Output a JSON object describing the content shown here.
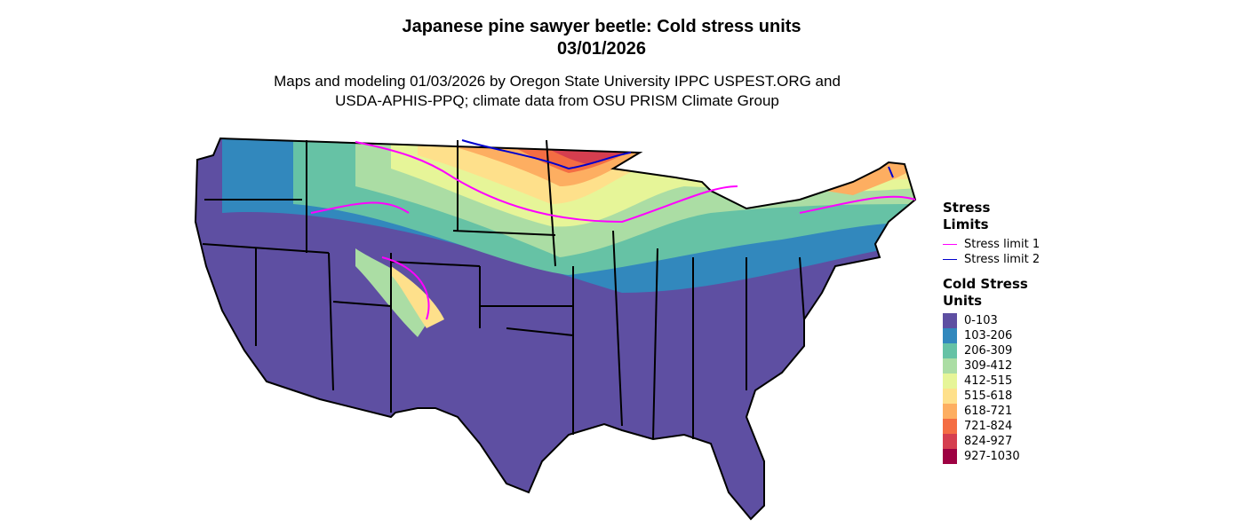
{
  "header": {
    "title": "Japanese pine sawyer beetle: Cold stress units",
    "date": "03/01/2026",
    "subtitle_line1": "Maps and modeling 01/03/2026 by Oregon State University IPPC USPEST.ORG and",
    "subtitle_line2": "USDA-APHIS-PPQ; climate data from OSU PRISM Climate Group"
  },
  "legend_limits": {
    "title": "Stress Limits",
    "items": [
      {
        "label": "Stress limit 1",
        "color": "#ff00ff"
      },
      {
        "label": "Stress limit 2",
        "color": "#0000cd"
      }
    ]
  },
  "legend_units": {
    "title": "Cold Stress Units",
    "items": [
      {
        "label": "0-103",
        "color": "#5e4fa2"
      },
      {
        "label": "103-206",
        "color": "#3288bd"
      },
      {
        "label": "206-309",
        "color": "#66c2a5"
      },
      {
        "label": "309-412",
        "color": "#abdda4"
      },
      {
        "label": "412-515",
        "color": "#e6f598"
      },
      {
        "label": "515-618",
        "color": "#fee08b"
      },
      {
        "label": "618-721",
        "color": "#fdae61"
      },
      {
        "label": "721-824",
        "color": "#f46d43"
      },
      {
        "label": "824-927",
        "color": "#d53e4f"
      },
      {
        "label": "927-1030",
        "color": "#9e0142"
      }
    ]
  }
}
